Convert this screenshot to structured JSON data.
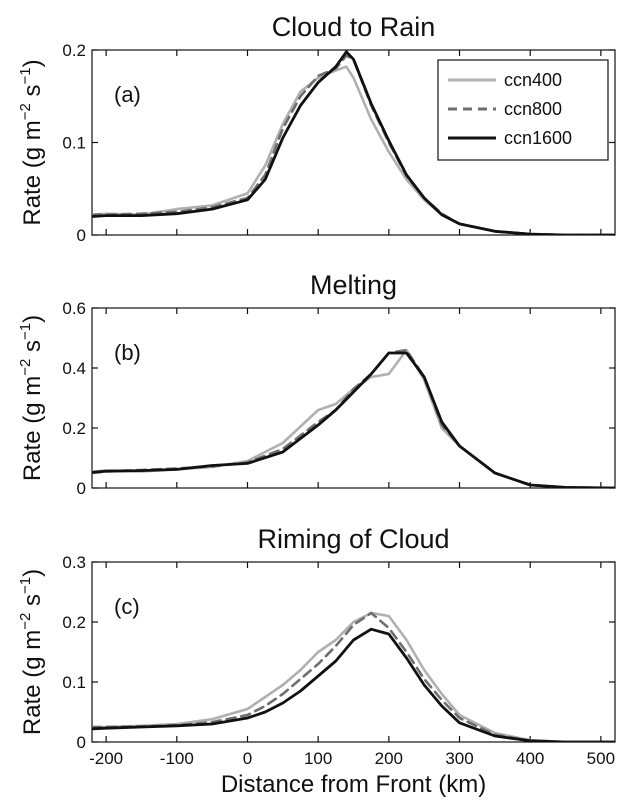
{
  "figure": {
    "xlabel": "Distance from Front (km)",
    "xlim": [
      -220,
      520
    ],
    "xticks": [
      -200,
      -100,
      0,
      100,
      200,
      300,
      400,
      500
    ],
    "legend": {
      "placement": "top-right of panel (a)",
      "entries": [
        {
          "name": "ccn400",
          "color": "#b0b0b0",
          "style": "solid"
        },
        {
          "name": "ccn800",
          "color": "#6e6e6e",
          "style": "dashed"
        },
        {
          "name": "ccn1600",
          "color": "#111111",
          "style": "solid"
        }
      ]
    }
  },
  "chart_data": [
    {
      "type": "line",
      "panel_label": "(a)",
      "title": "Cloud to Rain",
      "ylabel": "Rate (g m",
      "ylabel_exp1": "−2",
      "ylabel_mid": " s",
      "ylabel_exp2": "−1",
      "ylabel_close": ")",
      "xlabel": "",
      "ylim": [
        0,
        0.2
      ],
      "yticks": [
        0,
        0.1,
        0.2
      ],
      "ytick_labels": [
        "0",
        "0.1",
        "0.2"
      ],
      "x": [
        -220,
        -200,
        -150,
        -100,
        -50,
        0,
        25,
        50,
        75,
        100,
        125,
        140,
        150,
        175,
        200,
        225,
        250,
        275,
        300,
        350,
        400,
        450,
        520
      ],
      "series": [
        {
          "name": "ccn400",
          "values": [
            0.022,
            0.023,
            0.022,
            0.028,
            0.032,
            0.045,
            0.075,
            0.12,
            0.155,
            0.17,
            0.178,
            0.182,
            0.17,
            0.125,
            0.09,
            0.06,
            0.038,
            0.022,
            0.012,
            0.004,
            0.001,
            0.0,
            0.0
          ]
        },
        {
          "name": "ccn800",
          "values": [
            0.022,
            0.022,
            0.023,
            0.025,
            0.03,
            0.04,
            0.065,
            0.115,
            0.15,
            0.172,
            0.18,
            0.194,
            0.19,
            0.14,
            0.1,
            0.064,
            0.04,
            0.023,
            0.012,
            0.004,
            0.001,
            0.0,
            0.0
          ]
        },
        {
          "name": "ccn1600",
          "values": [
            0.02,
            0.021,
            0.021,
            0.023,
            0.028,
            0.038,
            0.06,
            0.105,
            0.14,
            0.165,
            0.182,
            0.198,
            0.19,
            0.142,
            0.102,
            0.065,
            0.04,
            0.022,
            0.012,
            0.004,
            0.001,
            0.0,
            0.0
          ]
        }
      ]
    },
    {
      "type": "line",
      "panel_label": "(b)",
      "title": "Melting",
      "ylabel": "Rate (g m",
      "ylabel_exp1": "−2",
      "ylabel_mid": " s",
      "ylabel_exp2": "−1",
      "ylabel_close": ")",
      "xlabel": "",
      "ylim": [
        0,
        0.6
      ],
      "yticks": [
        0,
        0.2,
        0.4,
        0.6
      ],
      "ytick_labels": [
        "0",
        "0.2",
        "0.4",
        "0.6"
      ],
      "x": [
        -220,
        -200,
        -150,
        -100,
        -50,
        0,
        50,
        100,
        125,
        150,
        175,
        200,
        225,
        250,
        275,
        300,
        350,
        400,
        450,
        520
      ],
      "series": [
        {
          "name": "ccn400",
          "values": [
            0.055,
            0.058,
            0.055,
            0.062,
            0.07,
            0.09,
            0.15,
            0.26,
            0.28,
            0.33,
            0.37,
            0.38,
            0.46,
            0.36,
            0.2,
            0.14,
            0.05,
            0.01,
            0.002,
            0.0
          ]
        },
        {
          "name": "ccn800",
          "values": [
            0.05,
            0.055,
            0.06,
            0.065,
            0.072,
            0.085,
            0.13,
            0.22,
            0.26,
            0.33,
            0.38,
            0.45,
            0.46,
            0.37,
            0.21,
            0.14,
            0.05,
            0.01,
            0.002,
            0.0
          ]
        },
        {
          "name": "ccn1600",
          "values": [
            0.052,
            0.056,
            0.058,
            0.062,
            0.075,
            0.082,
            0.12,
            0.21,
            0.26,
            0.32,
            0.38,
            0.45,
            0.45,
            0.37,
            0.22,
            0.14,
            0.05,
            0.01,
            0.002,
            0.0
          ]
        }
      ]
    },
    {
      "type": "line",
      "panel_label": "(c)",
      "title": "Riming of Cloud",
      "ylabel": "Rate (g m",
      "ylabel_exp1": "−2",
      "ylabel_mid": " s",
      "ylabel_exp2": "−1",
      "ylabel_close": ")",
      "xlabel": "Distance from Front (km)",
      "ylim": [
        0,
        0.3
      ],
      "yticks": [
        0,
        0.1,
        0.2,
        0.3
      ],
      "ytick_labels": [
        "0",
        "0.1",
        "0.2",
        "0.3"
      ],
      "x": [
        -220,
        -200,
        -150,
        -100,
        -50,
        0,
        25,
        50,
        75,
        100,
        125,
        150,
        175,
        200,
        225,
        250,
        275,
        300,
        350,
        400,
        450,
        520
      ],
      "series": [
        {
          "name": "ccn400",
          "values": [
            0.025,
            0.025,
            0.027,
            0.03,
            0.038,
            0.055,
            0.075,
            0.095,
            0.12,
            0.15,
            0.17,
            0.2,
            0.215,
            0.21,
            0.17,
            0.12,
            0.08,
            0.045,
            0.015,
            0.003,
            0.0,
            0.0
          ]
        },
        {
          "name": "ccn800",
          "values": [
            0.025,
            0.025,
            0.026,
            0.028,
            0.033,
            0.045,
            0.06,
            0.08,
            0.105,
            0.13,
            0.16,
            0.195,
            0.215,
            0.19,
            0.15,
            0.105,
            0.07,
            0.04,
            0.012,
            0.002,
            0.0,
            0.0
          ]
        },
        {
          "name": "ccn1600",
          "values": [
            0.022,
            0.023,
            0.025,
            0.027,
            0.03,
            0.04,
            0.05,
            0.065,
            0.085,
            0.11,
            0.135,
            0.17,
            0.188,
            0.18,
            0.14,
            0.095,
            0.06,
            0.032,
            0.01,
            0.002,
            0.0,
            0.0
          ]
        }
      ]
    }
  ]
}
